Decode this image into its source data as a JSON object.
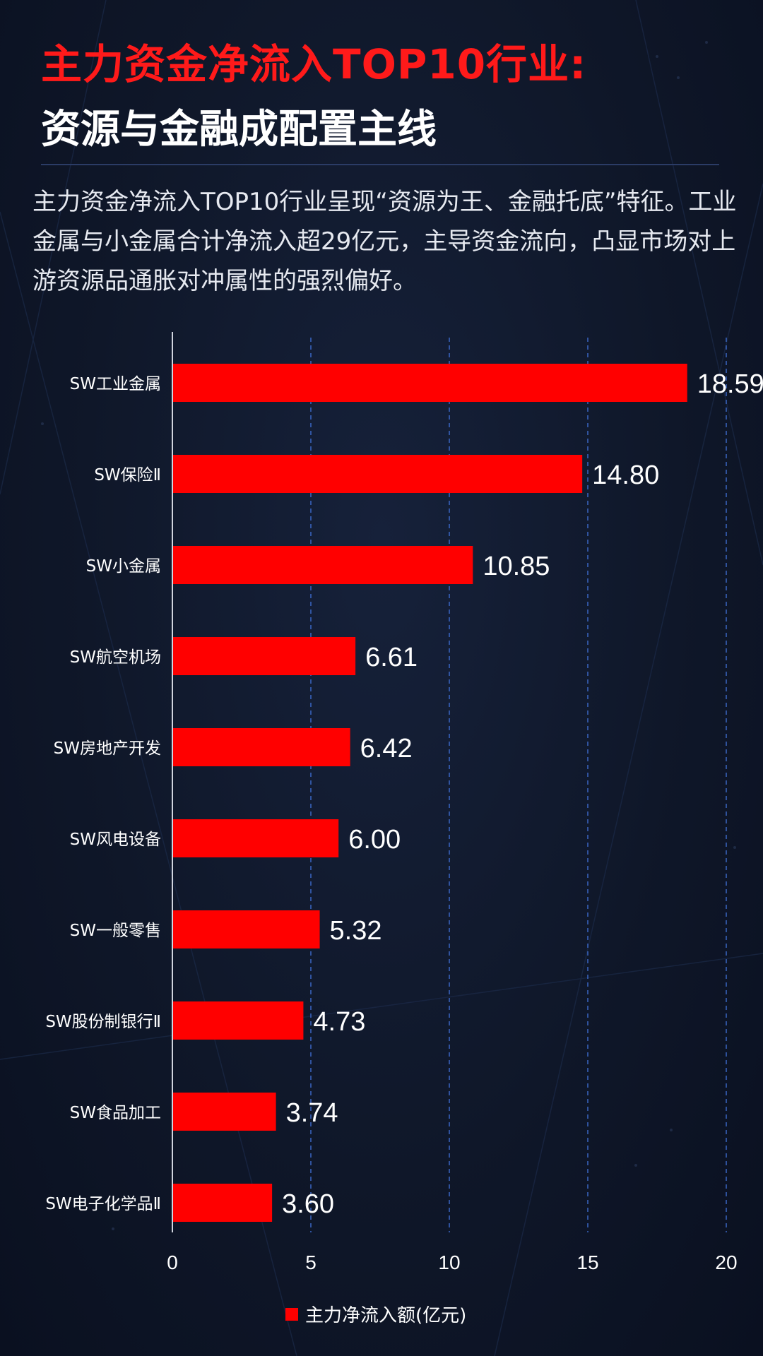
{
  "header": {
    "title": "主力资金净流入TOP10行业:",
    "subtitle": "资源与金融成配置主线"
  },
  "description": "主力资金净流入TOP10行业呈现“资源为王、金融托底”特征。工业金属与小金属合计净流入超29亿元，主导资金流向，凸显市场对上游资源品通胀对冲属性的强烈偏好。",
  "chart_data": {
    "type": "bar",
    "orientation": "horizontal",
    "categories": [
      "SW工业金属",
      "SW保险Ⅱ",
      "SW小金属",
      "SW航空机场",
      "SW房地产开发",
      "SW风电设备",
      "SW一般零售",
      "SW股份制银行Ⅱ",
      "SW食品加工",
      "SW电子化学品Ⅱ"
    ],
    "series": [
      {
        "name": "主力净流入额(亿元)",
        "values": [
          18.59,
          14.8,
          10.85,
          6.61,
          6.42,
          6.0,
          5.32,
          4.73,
          3.74,
          3.6
        ],
        "labels": [
          "18.59",
          "14.80",
          "10.85",
          "6.61",
          "6.42",
          "6.00",
          "5.32",
          "4.73",
          "3.74",
          "3.60"
        ]
      }
    ],
    "xlim": [
      0,
      20
    ],
    "xticks": [
      "0",
      "5",
      "10",
      "15",
      "20"
    ],
    "grid": "vertical dashed",
    "legend_position": "bottom",
    "bar_color": "#ff0000"
  },
  "colors": {
    "title": "#ff1a1a",
    "background": "#0f1729",
    "grid": "#3a66c4"
  }
}
